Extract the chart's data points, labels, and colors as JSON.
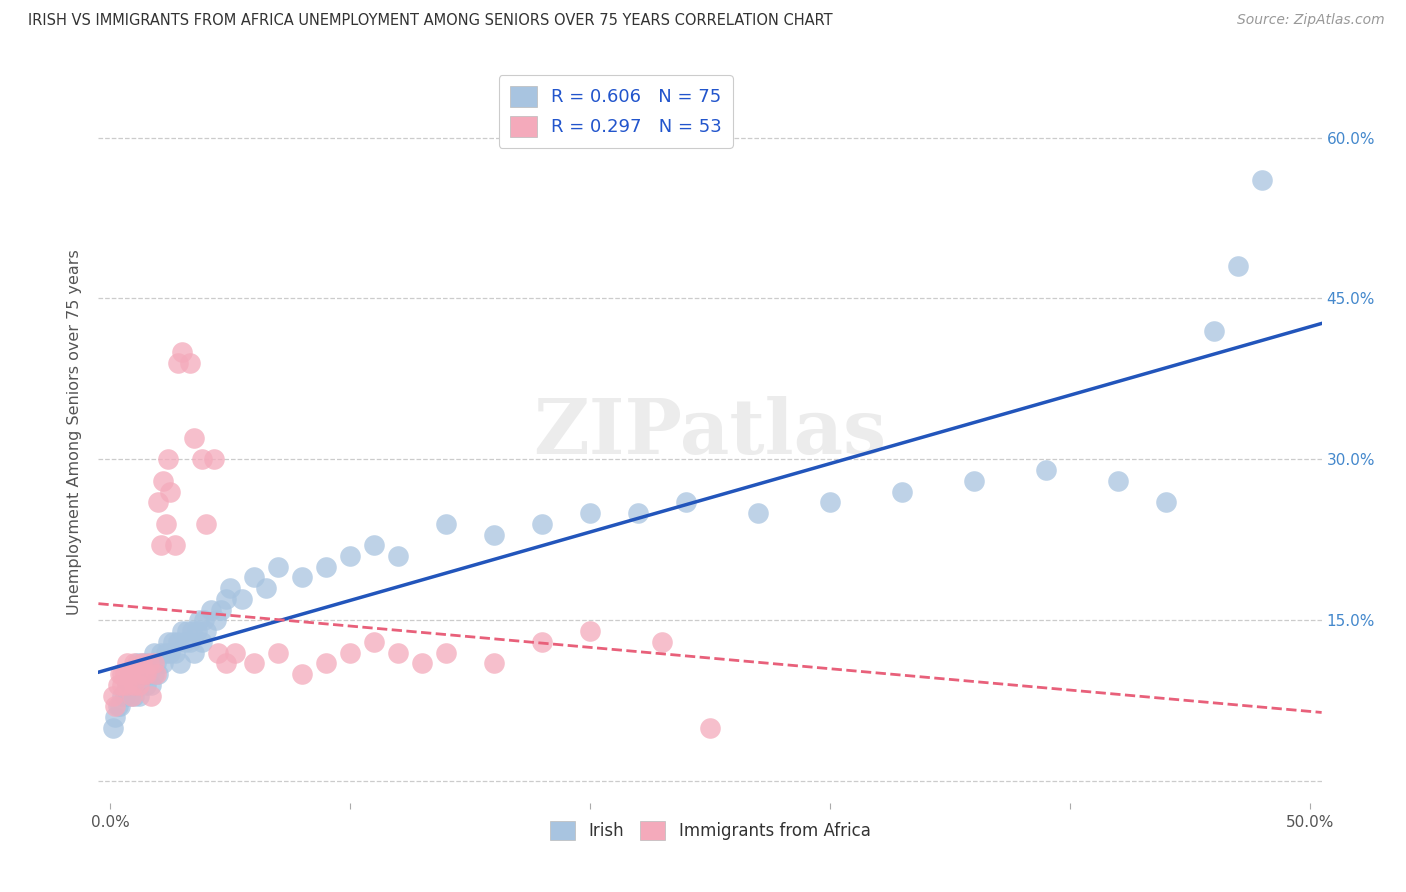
{
  "title": "IRISH VS IMMIGRANTS FROM AFRICA UNEMPLOYMENT AMONG SENIORS OVER 75 YEARS CORRELATION CHART",
  "source": "Source: ZipAtlas.com",
  "ylabel": "Unemployment Among Seniors over 75 years",
  "xlim": [
    -0.005,
    0.505
  ],
  "ylim": [
    -0.02,
    0.67
  ],
  "irish_R": 0.606,
  "irish_N": 75,
  "africa_R": 0.297,
  "africa_N": 53,
  "irish_color": "#A8C4E0",
  "africa_color": "#F4AABB",
  "irish_line_color": "#2255BB",
  "africa_line_color": "#E8607A",
  "background_color": "#FFFFFF",
  "watermark": "ZIPatlas",
  "irish_x": [
    0.001,
    0.002,
    0.003,
    0.004,
    0.005,
    0.006,
    0.007,
    0.008,
    0.008,
    0.009,
    0.01,
    0.01,
    0.011,
    0.012,
    0.012,
    0.013,
    0.014,
    0.015,
    0.015,
    0.016,
    0.017,
    0.018,
    0.018,
    0.019,
    0.02,
    0.021,
    0.022,
    0.023,
    0.024,
    0.025,
    0.026,
    0.027,
    0.028,
    0.029,
    0.03,
    0.031,
    0.032,
    0.033,
    0.034,
    0.035,
    0.036,
    0.037,
    0.038,
    0.039,
    0.04,
    0.042,
    0.044,
    0.046,
    0.048,
    0.05,
    0.055,
    0.06,
    0.065,
    0.07,
    0.08,
    0.09,
    0.1,
    0.11,
    0.12,
    0.14,
    0.16,
    0.18,
    0.2,
    0.22,
    0.24,
    0.27,
    0.3,
    0.33,
    0.36,
    0.39,
    0.42,
    0.44,
    0.46,
    0.47,
    0.48
  ],
  "irish_y": [
    0.05,
    0.06,
    0.07,
    0.07,
    0.08,
    0.08,
    0.09,
    0.08,
    0.1,
    0.09,
    0.1,
    0.08,
    0.11,
    0.1,
    0.08,
    0.11,
    0.1,
    0.09,
    0.11,
    0.1,
    0.09,
    0.1,
    0.12,
    0.11,
    0.1,
    0.12,
    0.11,
    0.12,
    0.13,
    0.12,
    0.13,
    0.12,
    0.13,
    0.11,
    0.14,
    0.13,
    0.14,
    0.13,
    0.14,
    0.12,
    0.14,
    0.15,
    0.13,
    0.15,
    0.14,
    0.16,
    0.15,
    0.16,
    0.17,
    0.18,
    0.17,
    0.19,
    0.18,
    0.2,
    0.19,
    0.2,
    0.21,
    0.22,
    0.21,
    0.24,
    0.23,
    0.24,
    0.25,
    0.25,
    0.26,
    0.25,
    0.26,
    0.27,
    0.28,
    0.29,
    0.28,
    0.26,
    0.42,
    0.48,
    0.56
  ],
  "africa_x": [
    0.001,
    0.002,
    0.003,
    0.004,
    0.005,
    0.005,
    0.006,
    0.007,
    0.007,
    0.008,
    0.009,
    0.01,
    0.01,
    0.011,
    0.012,
    0.013,
    0.014,
    0.015,
    0.016,
    0.017,
    0.018,
    0.019,
    0.02,
    0.021,
    0.022,
    0.023,
    0.024,
    0.025,
    0.027,
    0.028,
    0.03,
    0.033,
    0.035,
    0.038,
    0.04,
    0.043,
    0.045,
    0.048,
    0.052,
    0.06,
    0.07,
    0.08,
    0.09,
    0.1,
    0.11,
    0.12,
    0.13,
    0.14,
    0.16,
    0.18,
    0.2,
    0.23,
    0.25
  ],
  "africa_y": [
    0.08,
    0.07,
    0.09,
    0.1,
    0.09,
    0.1,
    0.1,
    0.11,
    0.09,
    0.1,
    0.08,
    0.09,
    0.11,
    0.1,
    0.09,
    0.11,
    0.1,
    0.1,
    0.11,
    0.08,
    0.11,
    0.1,
    0.26,
    0.22,
    0.28,
    0.24,
    0.3,
    0.27,
    0.22,
    0.39,
    0.4,
    0.39,
    0.32,
    0.3,
    0.24,
    0.3,
    0.12,
    0.11,
    0.12,
    0.11,
    0.12,
    0.1,
    0.11,
    0.12,
    0.13,
    0.12,
    0.11,
    0.12,
    0.11,
    0.13,
    0.14,
    0.13,
    0.05
  ]
}
